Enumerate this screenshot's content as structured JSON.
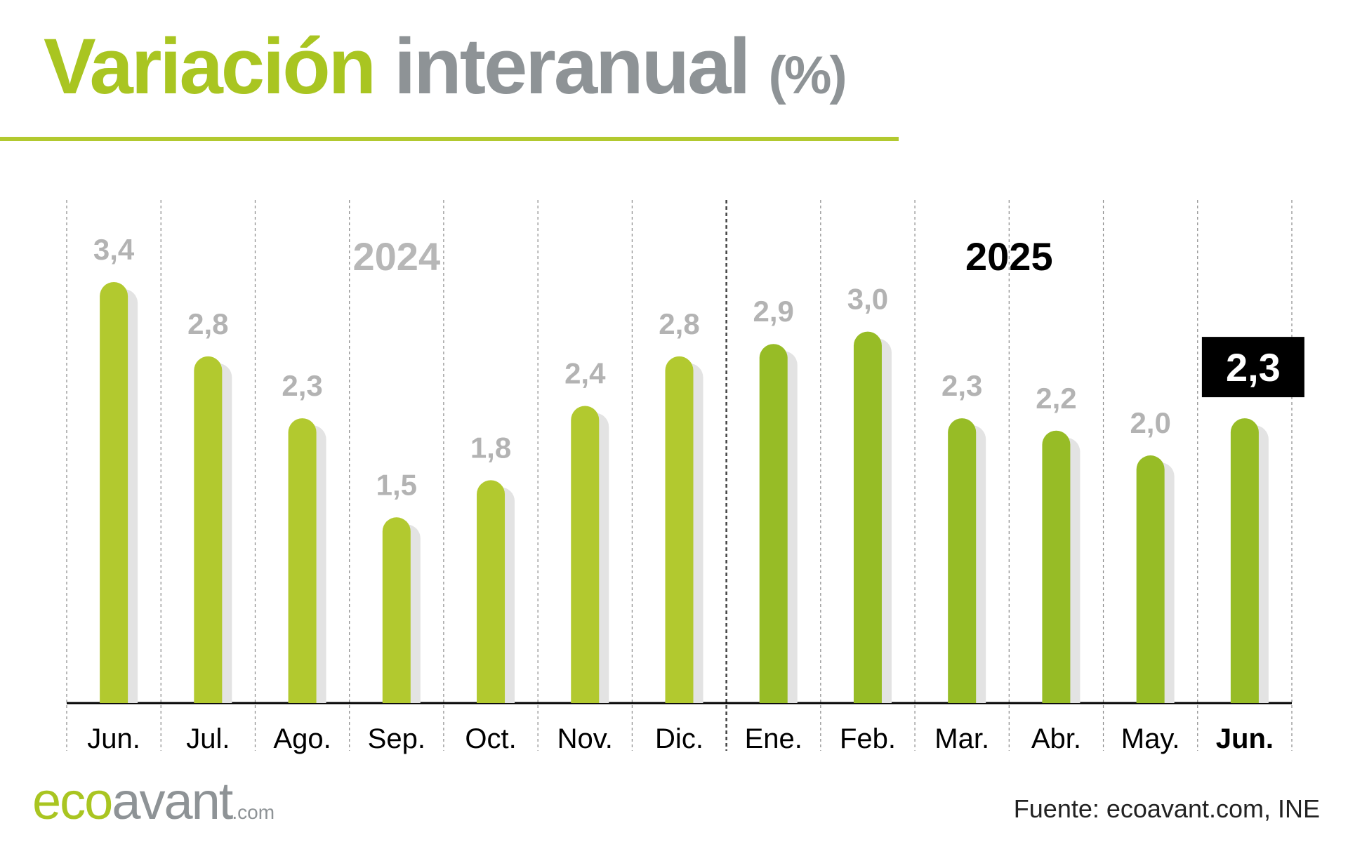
{
  "title": {
    "part1": "Variación",
    "part2": "interanual",
    "part3": "(%)"
  },
  "chart_data": {
    "type": "bar",
    "categories": [
      "Jun.",
      "Jul.",
      "Ago.",
      "Sep.",
      "Oct.",
      "Nov.",
      "Dic.",
      "Ene.",
      "Feb.",
      "Mar.",
      "Abr.",
      "May.",
      "Jun."
    ],
    "values": [
      3.4,
      2.8,
      2.3,
      1.5,
      1.8,
      2.4,
      2.8,
      2.9,
      3.0,
      2.3,
      2.2,
      2.0,
      2.3
    ],
    "value_labels": [
      "3,4",
      "2,8",
      "2,3",
      "1,5",
      "1,8",
      "2,4",
      "2,8",
      "2,9",
      "3,0",
      "2,3",
      "2,2",
      "2,0",
      "2,3"
    ],
    "groups": [
      {
        "label": "2024",
        "start_index": 0,
        "end_index": 6,
        "color": "#b2c92f",
        "label_color": "#b7b7b7"
      },
      {
        "label": "2025",
        "start_index": 7,
        "end_index": 12,
        "color": "#97bc26",
        "label_color": "#000000"
      }
    ],
    "highlight_index": 12,
    "ylim": [
      0,
      3.5
    ],
    "grid": true,
    "colors": {
      "value_label": "#b3b3b3",
      "shadow": "#e3e3e3",
      "gridline": "#8a8a8a",
      "baseline": "#000000",
      "highlight_bg": "#000000",
      "highlight_text": "#ffffff"
    }
  },
  "footer": {
    "logo_eco": "eco",
    "logo_avant": "avant",
    "logo_com": ".com",
    "source": "Fuente: ecoavant.com, INE"
  }
}
